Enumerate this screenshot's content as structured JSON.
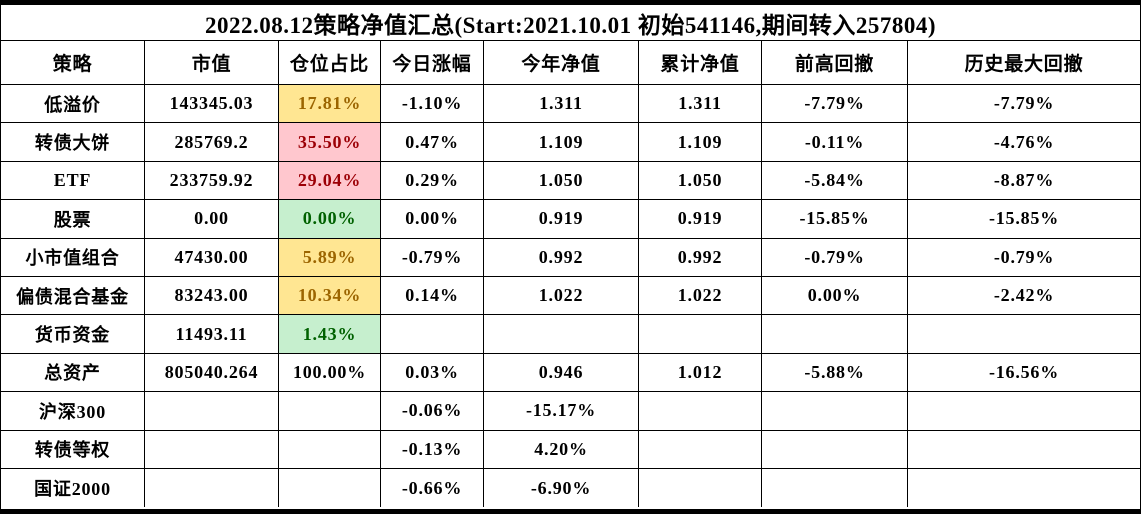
{
  "title": "2022.08.12策略净值汇总(Start:2021.10.01 初始541146,期间转入257804)",
  "styles": {
    "border_color": "#000000",
    "background": "#FFFFFF",
    "neutral": {
      "bg": "#FFE692",
      "text": "#9C6500"
    },
    "bad": {
      "bg": "#FFC7CE",
      "text": "#9C0006"
    },
    "good": {
      "bg": "#C6EFCE",
      "text": "#006100"
    }
  },
  "chart_data": {
    "type": "table",
    "title": "2022.08.12策略净值汇总(Start:2021.10.01 初始541146,期间转入257804)",
    "columns": [
      "策略",
      "市值",
      "仓位占比",
      "今日涨幅",
      "今年净值",
      "累计净值",
      "前高回撤",
      "历史最大回撤"
    ],
    "position_style_column_index": 2,
    "rows": [
      {
        "cells": [
          "低溢价",
          "143345.03",
          "17.81%",
          "-1.10%",
          "1.311",
          "1.311",
          "-7.79%",
          "-7.79%"
        ],
        "position_style": "neutral"
      },
      {
        "cells": [
          "转债大饼",
          "285769.2",
          "35.50%",
          "0.47%",
          "1.109",
          "1.109",
          "-0.11%",
          "-4.76%"
        ],
        "position_style": "bad"
      },
      {
        "cells": [
          "ETF",
          "233759.92",
          "29.04%",
          "0.29%",
          "1.050",
          "1.050",
          "-5.84%",
          "-8.87%"
        ],
        "position_style": "bad"
      },
      {
        "cells": [
          "股票",
          "0.00",
          "0.00%",
          "0.00%",
          "0.919",
          "0.919",
          "-15.85%",
          "-15.85%"
        ],
        "position_style": "good"
      },
      {
        "cells": [
          "小市值组合",
          "47430.00",
          "5.89%",
          "-0.79%",
          "0.992",
          "0.992",
          "-0.79%",
          "-0.79%"
        ],
        "position_style": "neutral"
      },
      {
        "cells": [
          "偏债混合基金",
          "83243.00",
          "10.34%",
          "0.14%",
          "1.022",
          "1.022",
          "0.00%",
          "-2.42%"
        ],
        "position_style": "neutral"
      },
      {
        "cells": [
          "货币资金",
          "11493.11",
          "1.43%",
          "",
          "",
          "",
          "",
          ""
        ],
        "position_style": "good"
      },
      {
        "cells": [
          "总资产",
          "805040.264",
          "100.00%",
          "0.03%",
          "0.946",
          "1.012",
          "-5.88%",
          "-16.56%"
        ],
        "position_style": "none"
      },
      {
        "cells": [
          "沪深300",
          "",
          "",
          "-0.06%",
          "-15.17%",
          "",
          "",
          ""
        ],
        "position_style": "none"
      },
      {
        "cells": [
          "转债等权",
          "",
          "",
          "-0.13%",
          "4.20%",
          "",
          "",
          ""
        ],
        "position_style": "none"
      },
      {
        "cells": [
          "国证2000",
          "",
          "",
          "-0.66%",
          "-6.90%",
          "",
          "",
          ""
        ],
        "position_style": "none"
      }
    ]
  }
}
